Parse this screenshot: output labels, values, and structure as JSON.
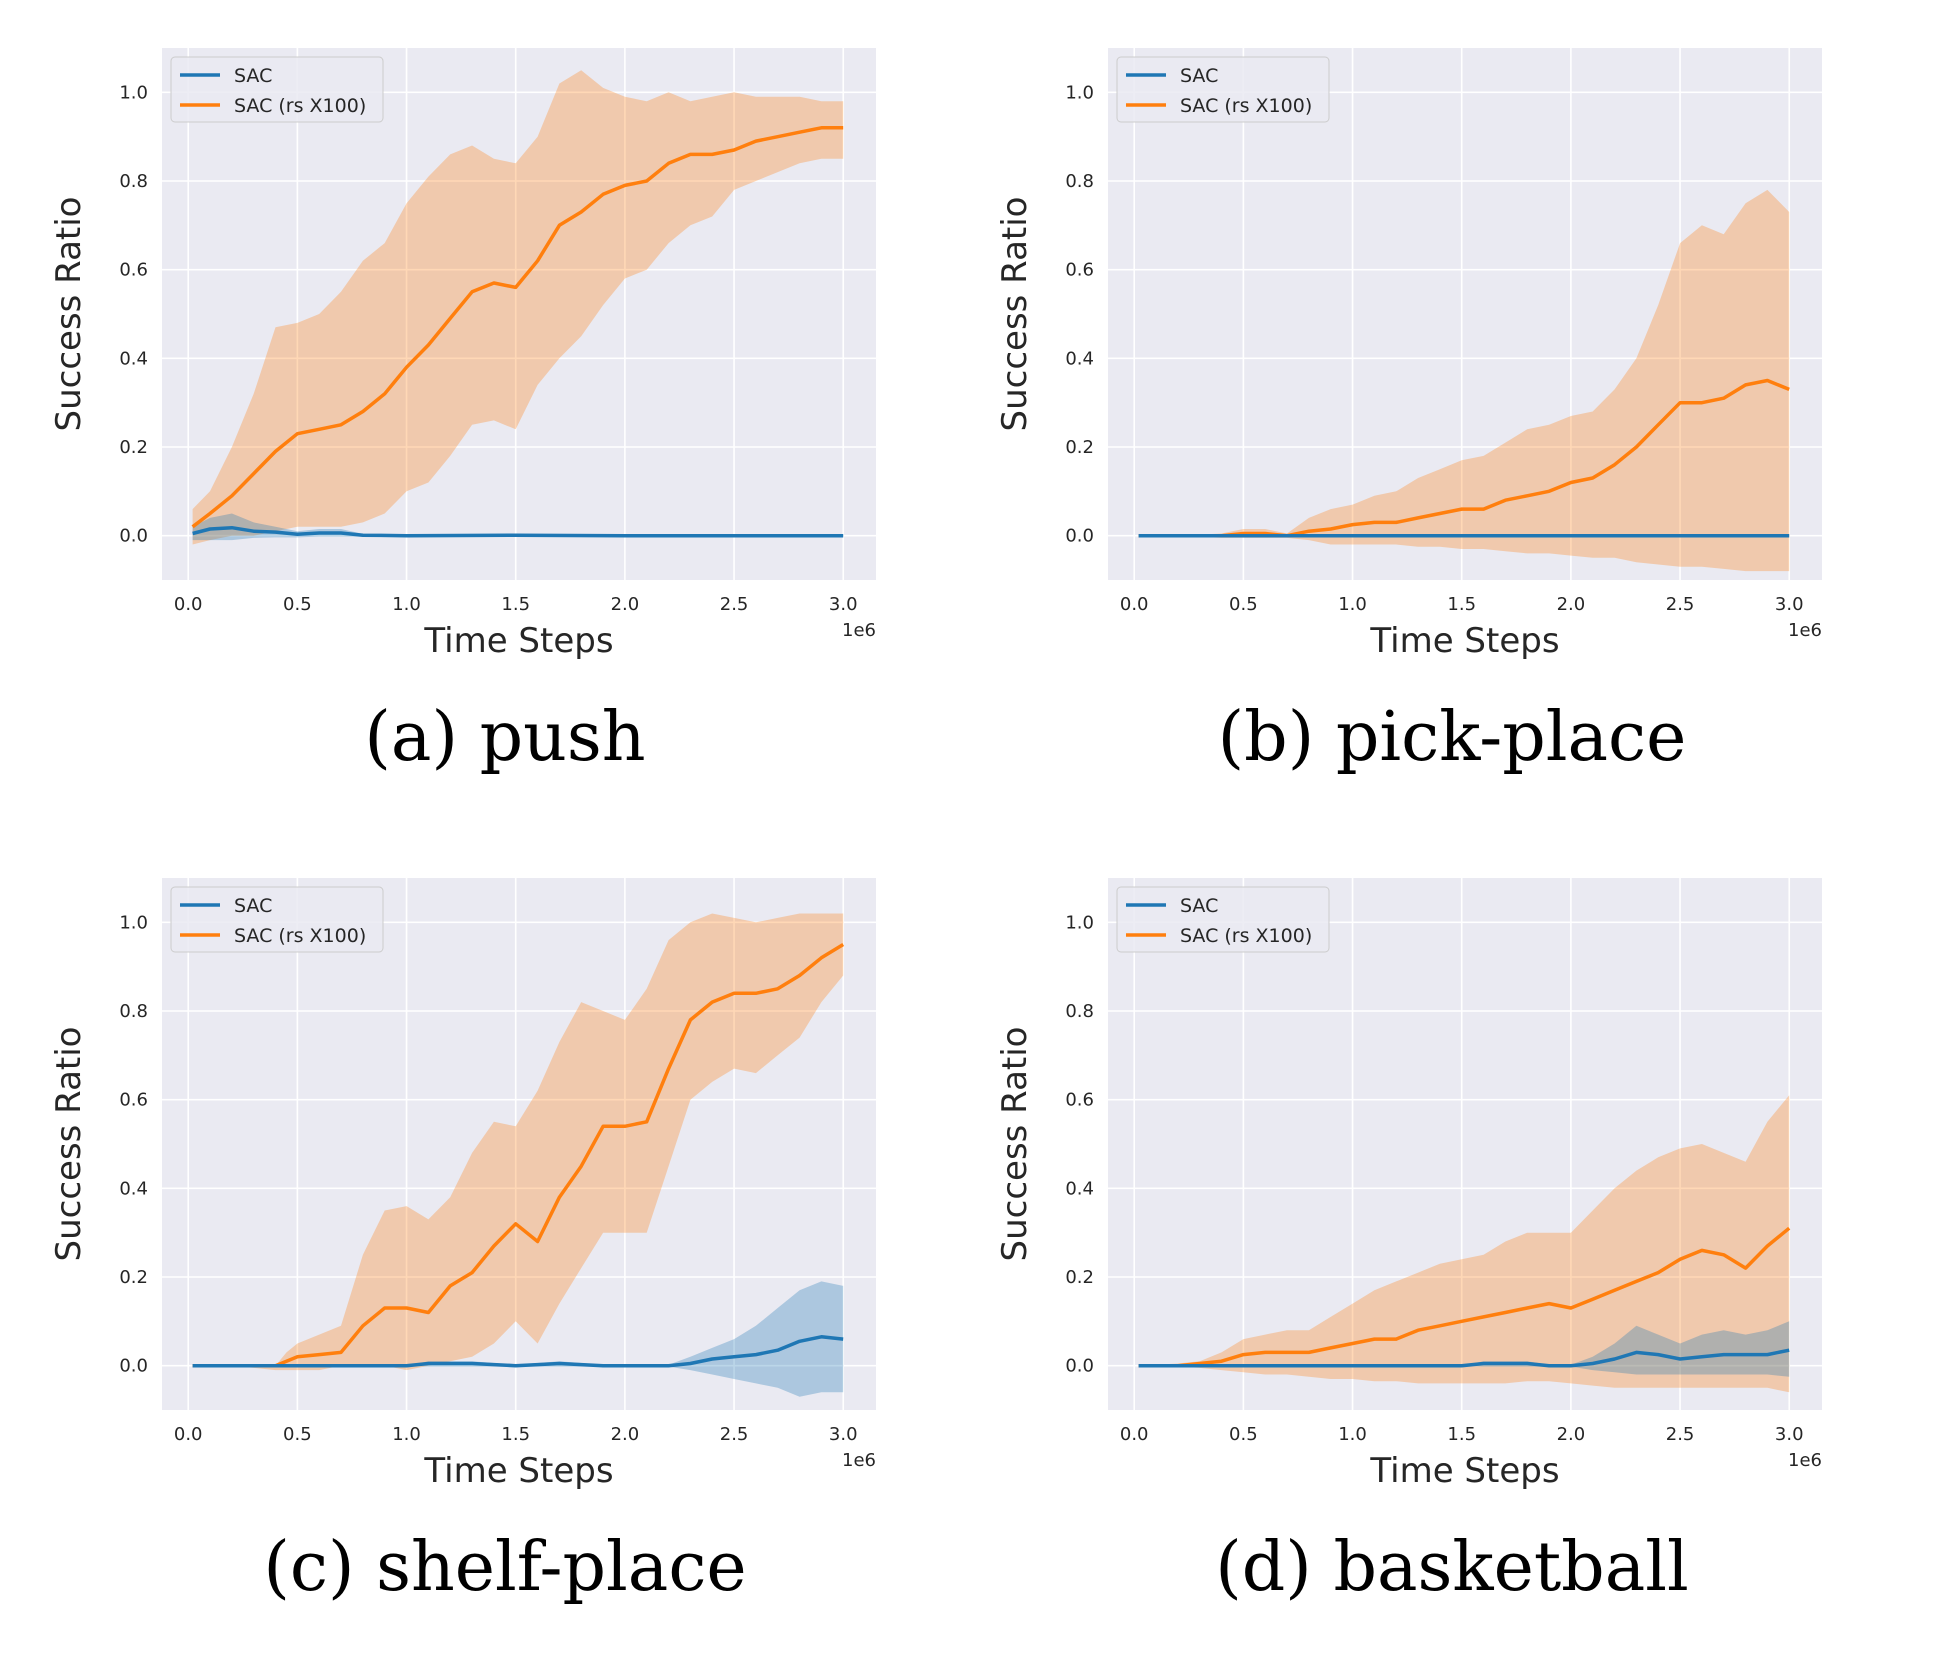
{
  "colors": {
    "background": "#eaeaf2",
    "grid": "#ffffff",
    "sac": "#1f77b4",
    "sac_rs": "#ff7f0e"
  },
  "chart_data": [
    {
      "type": "line",
      "caption": "(a) push",
      "xlabel": "Time Steps",
      "ylabel": "Success Ratio",
      "x_offset_label": "1e6",
      "xlim": [
        -0.12,
        3.15
      ],
      "ylim": [
        -0.1,
        1.1
      ],
      "xticks": [
        "0.0",
        "0.5",
        "1.0",
        "1.5",
        "2.0",
        "2.5",
        "3.0"
      ],
      "yticks": [
        "0.0",
        "0.2",
        "0.4",
        "0.6",
        "0.8",
        "1.0"
      ],
      "legend_position": "top-left",
      "series": [
        {
          "name": "SAC",
          "x": [
            0.02,
            0.1,
            0.2,
            0.3,
            0.4,
            0.5,
            0.6,
            0.7,
            0.8,
            1.0,
            1.5,
            2.0,
            2.5,
            3.0
          ],
          "mean": [
            0.005,
            0.015,
            0.018,
            0.01,
            0.008,
            0.003,
            0.006,
            0.006,
            0.001,
            0.0,
            0.001,
            0.0,
            0.0,
            0.0
          ],
          "upper": [
            0.02,
            0.04,
            0.05,
            0.03,
            0.02,
            0.01,
            0.015,
            0.015,
            0.004,
            0.0,
            0.003,
            0.002,
            0.0,
            0.0
          ],
          "lower": [
            -0.01,
            -0.01,
            -0.01,
            -0.005,
            -0.004,
            -0.004,
            -0.002,
            -0.002,
            -0.002,
            0.0,
            -0.001,
            -0.001,
            0.0,
            0.0
          ]
        },
        {
          "name": "SAC (rs X100)",
          "x": [
            0.02,
            0.1,
            0.2,
            0.3,
            0.4,
            0.5,
            0.6,
            0.7,
            0.8,
            0.9,
            1.0,
            1.1,
            1.2,
            1.3,
            1.4,
            1.5,
            1.6,
            1.7,
            1.8,
            1.9,
            2.0,
            2.1,
            2.2,
            2.3,
            2.4,
            2.5,
            2.6,
            2.7,
            2.8,
            2.9,
            3.0
          ],
          "mean": [
            0.02,
            0.05,
            0.09,
            0.14,
            0.19,
            0.23,
            0.24,
            0.25,
            0.28,
            0.32,
            0.38,
            0.43,
            0.49,
            0.55,
            0.57,
            0.56,
            0.62,
            0.7,
            0.73,
            0.77,
            0.79,
            0.8,
            0.84,
            0.86,
            0.86,
            0.87,
            0.89,
            0.9,
            0.91,
            0.92,
            0.92
          ],
          "upper": [
            0.06,
            0.1,
            0.2,
            0.32,
            0.47,
            0.48,
            0.5,
            0.55,
            0.62,
            0.66,
            0.75,
            0.81,
            0.86,
            0.88,
            0.85,
            0.84,
            0.9,
            1.02,
            1.05,
            1.01,
            0.99,
            0.98,
            1.0,
            0.98,
            0.99,
            1.0,
            0.99,
            0.99,
            0.99,
            0.98,
            0.98
          ],
          "lower": [
            -0.02,
            -0.01,
            0.0,
            0.0,
            0.01,
            0.02,
            0.02,
            0.02,
            0.03,
            0.05,
            0.1,
            0.12,
            0.18,
            0.25,
            0.26,
            0.24,
            0.34,
            0.4,
            0.45,
            0.52,
            0.58,
            0.6,
            0.66,
            0.7,
            0.72,
            0.78,
            0.8,
            0.82,
            0.84,
            0.85,
            0.85
          ]
        }
      ]
    },
    {
      "type": "line",
      "caption": "(b) pick-place",
      "xlabel": "Time Steps",
      "ylabel": "Success Ratio",
      "x_offset_label": "1e6",
      "xlim": [
        -0.12,
        3.15
      ],
      "ylim": [
        -0.1,
        1.1
      ],
      "xticks": [
        "0.0",
        "0.5",
        "1.0",
        "1.5",
        "2.0",
        "2.5",
        "3.0"
      ],
      "yticks": [
        "0.0",
        "0.2",
        "0.4",
        "0.6",
        "0.8",
        "1.0"
      ],
      "legend_position": "top-left",
      "series": [
        {
          "name": "SAC",
          "x": [
            0.02,
            0.5,
            1.0,
            1.5,
            2.0,
            2.5,
            3.0
          ],
          "mean": [
            0.0,
            0.0,
            0.0,
            0.0,
            0.0,
            0.0,
            0.0
          ],
          "upper": [
            0.0,
            0.0,
            0.0,
            0.0,
            0.0,
            0.0,
            0.0
          ],
          "lower": [
            0.0,
            0.0,
            0.0,
            0.0,
            0.0,
            0.0,
            0.0
          ]
        },
        {
          "name": "SAC (rs X100)",
          "x": [
            0.02,
            0.2,
            0.4,
            0.5,
            0.6,
            0.7,
            0.8,
            0.9,
            1.0,
            1.1,
            1.2,
            1.3,
            1.4,
            1.5,
            1.6,
            1.7,
            1.8,
            1.9,
            2.0,
            2.1,
            2.2,
            2.3,
            2.4,
            2.5,
            2.6,
            2.7,
            2.8,
            2.9,
            3.0
          ],
          "mean": [
            0.0,
            0.0,
            0.0,
            0.005,
            0.005,
            0.0,
            0.01,
            0.015,
            0.025,
            0.03,
            0.03,
            0.04,
            0.05,
            0.06,
            0.06,
            0.08,
            0.09,
            0.1,
            0.12,
            0.13,
            0.16,
            0.2,
            0.25,
            0.3,
            0.3,
            0.31,
            0.34,
            0.35,
            0.33
          ],
          "upper": [
            0.0,
            0.0,
            0.005,
            0.015,
            0.015,
            0.005,
            0.04,
            0.06,
            0.07,
            0.09,
            0.1,
            0.13,
            0.15,
            0.17,
            0.18,
            0.21,
            0.24,
            0.25,
            0.27,
            0.28,
            0.33,
            0.4,
            0.52,
            0.66,
            0.7,
            0.68,
            0.75,
            0.78,
            0.73
          ],
          "lower": [
            0.0,
            0.0,
            -0.005,
            -0.005,
            -0.005,
            -0.005,
            -0.01,
            -0.02,
            -0.02,
            -0.02,
            -0.02,
            -0.025,
            -0.025,
            -0.03,
            -0.03,
            -0.035,
            -0.04,
            -0.04,
            -0.045,
            -0.05,
            -0.05,
            -0.06,
            -0.065,
            -0.07,
            -0.07,
            -0.075,
            -0.08,
            -0.08,
            -0.08
          ]
        }
      ]
    },
    {
      "type": "line",
      "caption": "(c) shelf-place",
      "xlabel": "Time Steps",
      "ylabel": "Success Ratio",
      "x_offset_label": "1e6",
      "xlim": [
        -0.12,
        3.15
      ],
      "ylim": [
        -0.1,
        1.1
      ],
      "xticks": [
        "0.0",
        "0.5",
        "1.0",
        "1.5",
        "2.0",
        "2.5",
        "3.0"
      ],
      "yticks": [
        "0.0",
        "0.2",
        "0.4",
        "0.6",
        "0.8",
        "1.0"
      ],
      "legend_position": "top-left",
      "series": [
        {
          "name": "SAC",
          "x": [
            0.02,
            0.5,
            1.0,
            1.1,
            1.3,
            1.5,
            1.7,
            1.9,
            2.0,
            2.2,
            2.3,
            2.4,
            2.5,
            2.6,
            2.7,
            2.8,
            2.9,
            3.0
          ],
          "mean": [
            0.0,
            0.0,
            0.0,
            0.005,
            0.005,
            0.0,
            0.005,
            0.0,
            0.0,
            0.0,
            0.005,
            0.015,
            0.02,
            0.025,
            0.035,
            0.055,
            0.065,
            0.06
          ],
          "upper": [
            0.0,
            0.0,
            0.0,
            0.01,
            0.01,
            0.002,
            0.01,
            0.002,
            0.0,
            0.002,
            0.02,
            0.04,
            0.06,
            0.09,
            0.13,
            0.17,
            0.19,
            0.18
          ],
          "lower": [
            0.0,
            0.0,
            0.0,
            -0.002,
            -0.002,
            -0.002,
            -0.002,
            -0.002,
            0.0,
            -0.002,
            -0.01,
            -0.02,
            -0.03,
            -0.04,
            -0.05,
            -0.07,
            -0.06,
            -0.06
          ]
        },
        {
          "name": "SAC (rs X100)",
          "x": [
            0.02,
            0.2,
            0.4,
            0.45,
            0.5,
            0.6,
            0.7,
            0.8,
            0.9,
            1.0,
            1.1,
            1.2,
            1.3,
            1.4,
            1.5,
            1.6,
            1.7,
            1.8,
            1.9,
            2.0,
            2.1,
            2.2,
            2.3,
            2.4,
            2.5,
            2.6,
            2.7,
            2.8,
            2.9,
            3.0
          ],
          "mean": [
            0.0,
            0.0,
            0.0,
            0.01,
            0.02,
            0.025,
            0.03,
            0.09,
            0.13,
            0.13,
            0.12,
            0.18,
            0.21,
            0.27,
            0.32,
            0.28,
            0.38,
            0.45,
            0.54,
            0.54,
            0.55,
            0.67,
            0.78,
            0.82,
            0.84,
            0.84,
            0.85,
            0.88,
            0.92,
            0.95
          ],
          "upper": [
            0.0,
            0.0,
            0.0,
            0.03,
            0.05,
            0.07,
            0.09,
            0.25,
            0.35,
            0.36,
            0.33,
            0.38,
            0.48,
            0.55,
            0.54,
            0.62,
            0.73,
            0.82,
            0.8,
            0.78,
            0.85,
            0.96,
            1.0,
            1.02,
            1.01,
            1.0,
            1.01,
            1.02,
            1.02,
            1.02
          ],
          "lower": [
            0.0,
            0.0,
            -0.01,
            -0.01,
            -0.01,
            -0.01,
            0.0,
            0.0,
            0.0,
            -0.01,
            0.0,
            0.01,
            0.02,
            0.05,
            0.1,
            0.05,
            0.14,
            0.22,
            0.3,
            0.3,
            0.3,
            0.45,
            0.6,
            0.64,
            0.67,
            0.66,
            0.7,
            0.74,
            0.82,
            0.88
          ]
        }
      ]
    },
    {
      "type": "line",
      "caption": "(d) basketball",
      "xlabel": "Time Steps",
      "ylabel": "Success Ratio",
      "x_offset_label": "1e6",
      "xlim": [
        -0.12,
        3.15
      ],
      "ylim": [
        -0.1,
        1.1
      ],
      "xticks": [
        "0.0",
        "0.5",
        "1.0",
        "1.5",
        "2.0",
        "2.5",
        "3.0"
      ],
      "yticks": [
        "0.0",
        "0.2",
        "0.4",
        "0.6",
        "0.8",
        "1.0"
      ],
      "legend_position": "top-left",
      "series": [
        {
          "name": "SAC",
          "x": [
            0.02,
            0.5,
            1.0,
            1.5,
            1.6,
            1.7,
            1.8,
            1.9,
            2.0,
            2.1,
            2.2,
            2.3,
            2.4,
            2.5,
            2.6,
            2.7,
            2.8,
            2.9,
            3.0
          ],
          "mean": [
            0.0,
            0.0,
            0.0,
            0.0,
            0.005,
            0.005,
            0.005,
            0.0,
            0.0,
            0.005,
            0.015,
            0.03,
            0.025,
            0.015,
            0.02,
            0.025,
            0.025,
            0.025,
            0.035
          ],
          "upper": [
            0.0,
            0.0,
            0.0,
            0.0,
            0.01,
            0.01,
            0.01,
            0.002,
            0.002,
            0.02,
            0.05,
            0.09,
            0.07,
            0.05,
            0.07,
            0.08,
            0.07,
            0.08,
            0.1
          ],
          "lower": [
            0.0,
            0.0,
            0.0,
            0.0,
            -0.002,
            -0.002,
            -0.002,
            -0.002,
            -0.002,
            -0.01,
            -0.015,
            -0.02,
            -0.02,
            -0.02,
            -0.02,
            -0.02,
            -0.02,
            -0.02,
            -0.025
          ]
        },
        {
          "name": "SAC (rs X100)",
          "x": [
            0.02,
            0.2,
            0.3,
            0.4,
            0.5,
            0.6,
            0.7,
            0.8,
            0.9,
            1.0,
            1.1,
            1.2,
            1.3,
            1.4,
            1.5,
            1.6,
            1.7,
            1.8,
            1.9,
            2.0,
            2.1,
            2.2,
            2.3,
            2.4,
            2.5,
            2.6,
            2.7,
            2.8,
            2.9,
            3.0
          ],
          "mean": [
            0.0,
            0.0,
            0.005,
            0.01,
            0.025,
            0.03,
            0.03,
            0.03,
            0.04,
            0.05,
            0.06,
            0.06,
            0.08,
            0.09,
            0.1,
            0.11,
            0.12,
            0.13,
            0.14,
            0.13,
            0.15,
            0.17,
            0.19,
            0.21,
            0.24,
            0.26,
            0.25,
            0.22,
            0.27,
            0.31
          ],
          "upper": [
            0.0,
            0.005,
            0.01,
            0.03,
            0.06,
            0.07,
            0.08,
            0.08,
            0.11,
            0.14,
            0.17,
            0.19,
            0.21,
            0.23,
            0.24,
            0.25,
            0.28,
            0.3,
            0.3,
            0.3,
            0.35,
            0.4,
            0.44,
            0.47,
            0.49,
            0.5,
            0.48,
            0.46,
            0.55,
            0.61
          ],
          "lower": [
            0.0,
            -0.002,
            -0.005,
            -0.01,
            -0.015,
            -0.02,
            -0.02,
            -0.025,
            -0.03,
            -0.03,
            -0.035,
            -0.035,
            -0.04,
            -0.04,
            -0.04,
            -0.04,
            -0.04,
            -0.035,
            -0.035,
            -0.04,
            -0.045,
            -0.05,
            -0.05,
            -0.05,
            -0.05,
            -0.05,
            -0.05,
            -0.05,
            -0.05,
            -0.06
          ]
        }
      ]
    }
  ]
}
